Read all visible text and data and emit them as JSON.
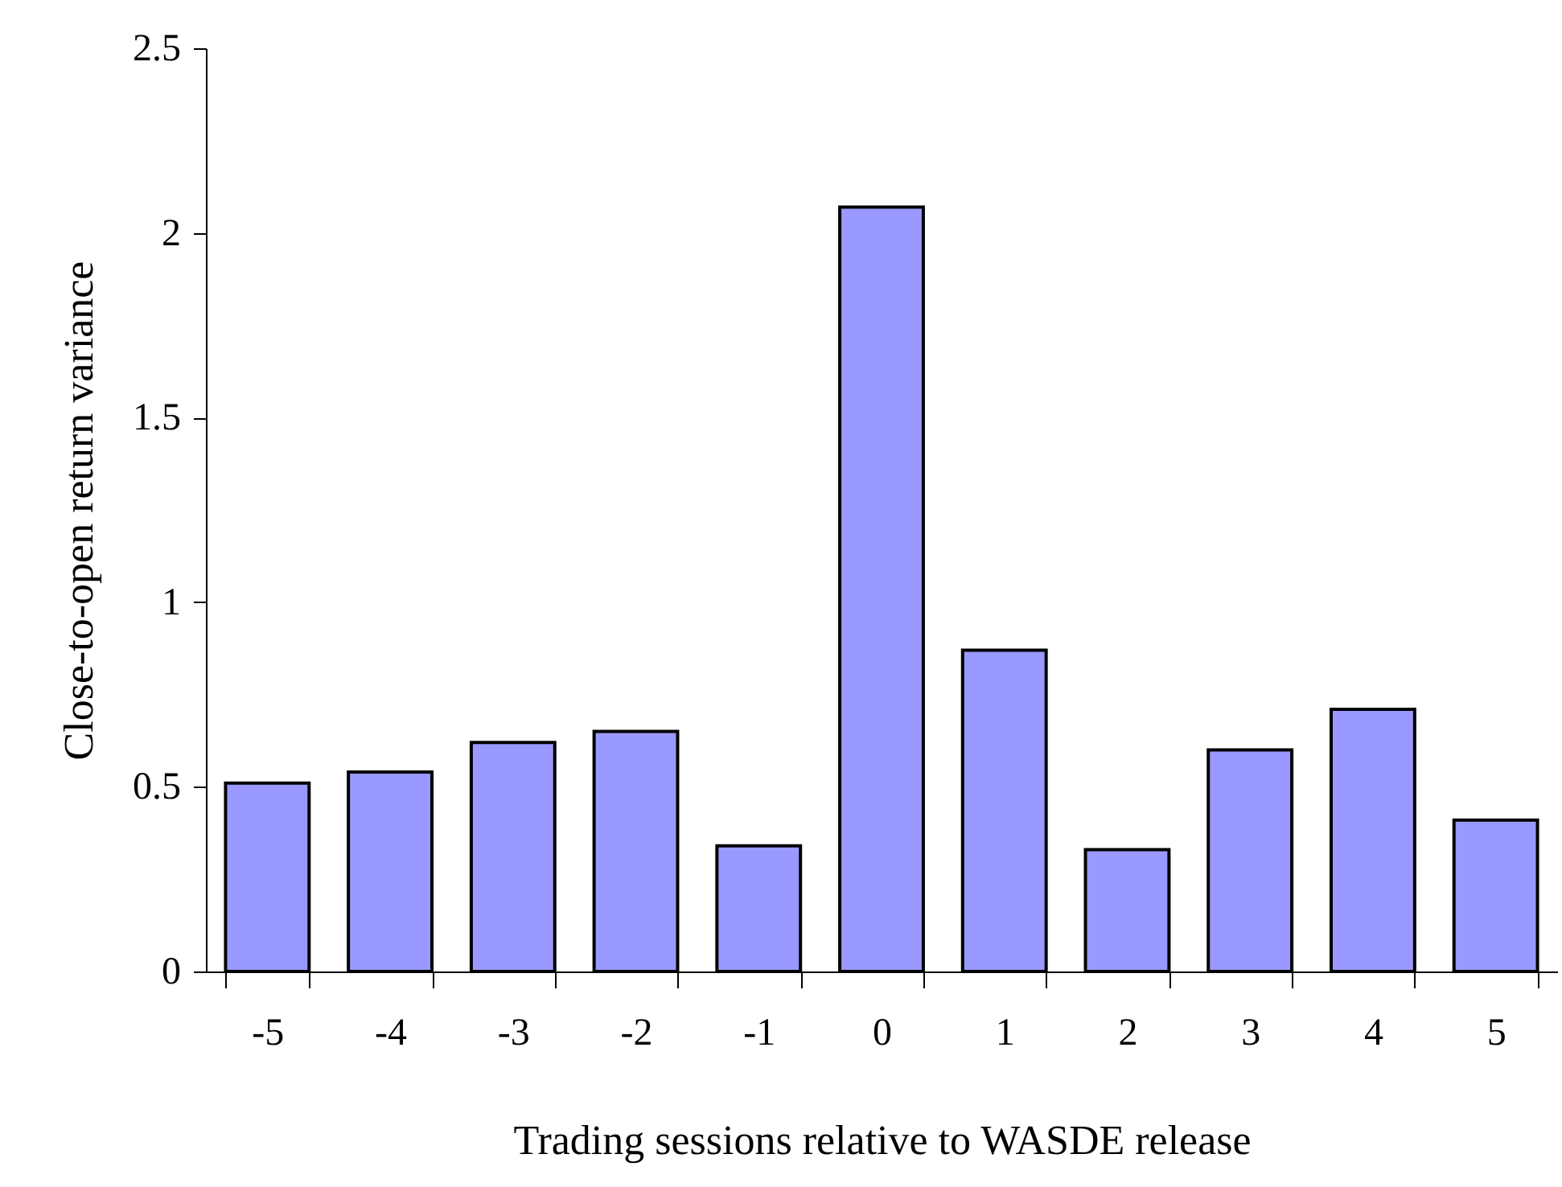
{
  "chart_data": {
    "type": "bar",
    "xlabel": "Trading sessions relative to WASDE release",
    "ylabel": "Close-to-open return variance",
    "categories": [
      "-5",
      "-4",
      "-3",
      "-2",
      "-1",
      "0",
      "1",
      "2",
      "3",
      "4",
      "5"
    ],
    "series": [
      {
        "color": "#9999ff",
        "values": [
          0.51,
          0.54,
          0.62,
          0.65,
          0.34,
          2.07,
          0.87,
          0.33,
          0.6,
          0.71,
          0.41
        ]
      }
    ],
    "ylim": [
      0,
      2.5
    ],
    "yticks": [
      0,
      0.5,
      1,
      1.5,
      2,
      2.5
    ],
    "grid": false,
    "legend": false
  }
}
